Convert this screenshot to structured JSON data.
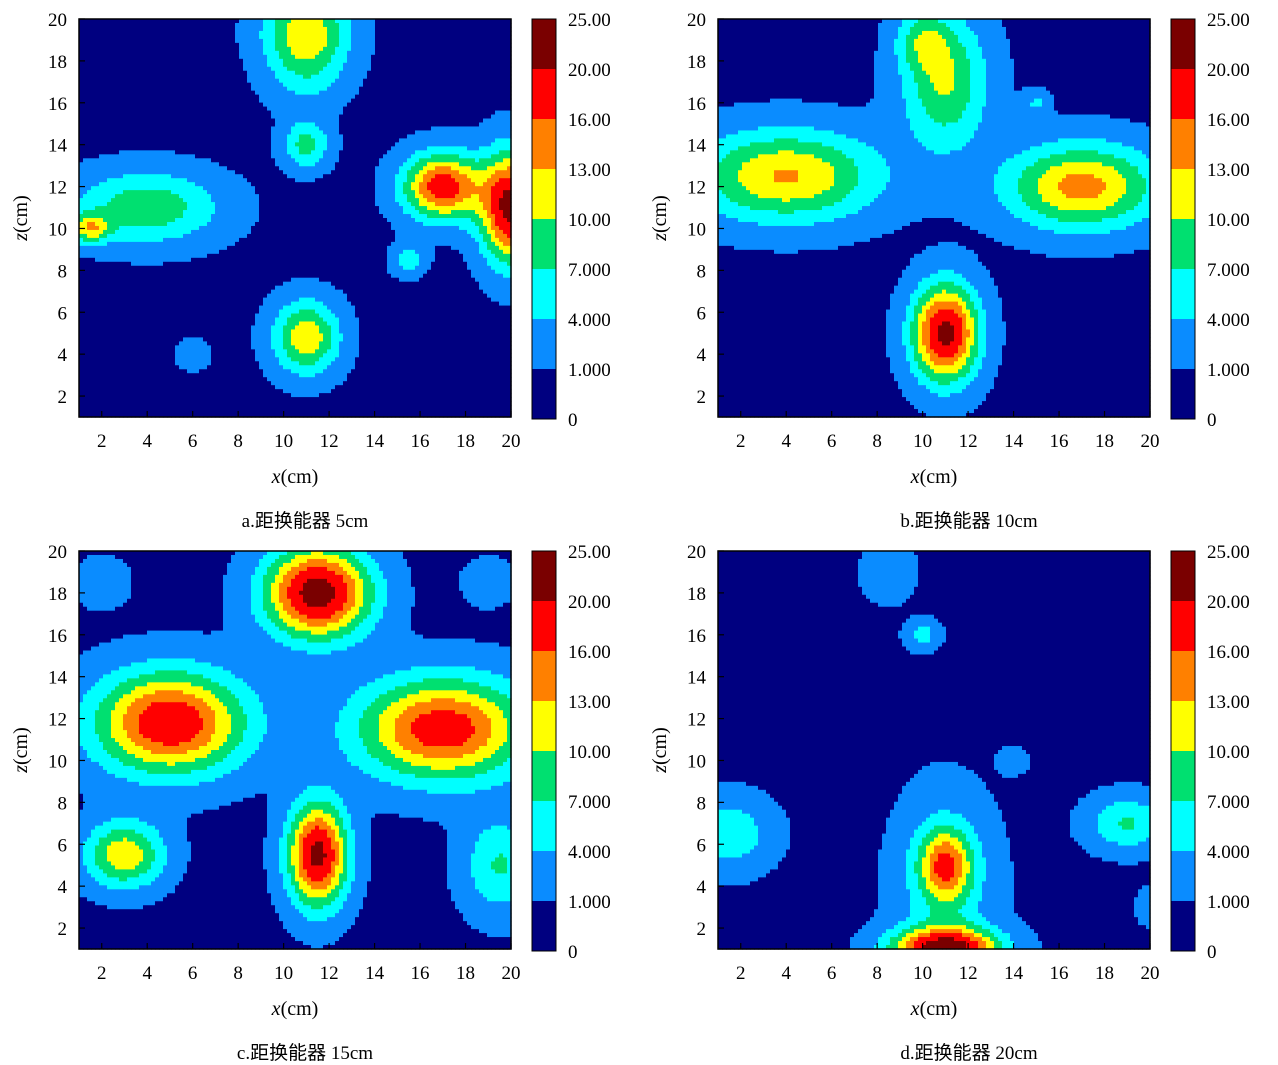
{
  "colorbar": {
    "labels": [
      "25.00",
      "20.00",
      "16.00",
      "13.00",
      "10.00",
      "7.000",
      "4.000",
      "1.000",
      "0"
    ],
    "colors": [
      "#7a0000",
      "#ff0000",
      "#ff8000",
      "#ffff00",
      "#00e070",
      "#00ffff",
      "#0a8cff",
      "#000080"
    ]
  },
  "chart_data": [
    {
      "type": "heatmap",
      "caption": "a.距换能器 5cm",
      "xlabel_var": "x",
      "xlabel_unit": "(cm)",
      "ylabel_var": "z",
      "ylabel_unit": "(cm)",
      "xlim": [
        1,
        20
      ],
      "ylim": [
        1,
        20
      ],
      "xticks": [
        2,
        4,
        6,
        8,
        10,
        12,
        14,
        16,
        18,
        20
      ],
      "yticks": [
        2,
        4,
        6,
        8,
        10,
        12,
        14,
        16,
        18,
        20
      ],
      "peaks": [
        {
          "x": 11,
          "z": 19.5,
          "v": 11,
          "sx": 1.3,
          "sz": 1.2
        },
        {
          "x": 11,
          "z": 17.5,
          "v": 5,
          "sx": 1.2,
          "sz": 1.2
        },
        {
          "x": 11,
          "z": 14,
          "v": 8,
          "sx": 0.7,
          "sz": 0.8
        },
        {
          "x": 4,
          "z": 11,
          "v": 9,
          "sx": 2.2,
          "sz": 1.2
        },
        {
          "x": 1.5,
          "z": 10,
          "v": 10,
          "sx": 0.6,
          "sz": 0.5
        },
        {
          "x": 17,
          "z": 12,
          "v": 18,
          "sx": 1.2,
          "sz": 1.1
        },
        {
          "x": 20,
          "z": 11,
          "v": 21,
          "sx": 0.9,
          "sz": 1.8
        },
        {
          "x": 11,
          "z": 4.8,
          "v": 12,
          "sx": 1,
          "sz": 1.2
        },
        {
          "x": 6,
          "z": 4,
          "v": 3,
          "sx": 0.5,
          "sz": 0.5
        },
        {
          "x": 15.5,
          "z": 8.5,
          "v": 6,
          "sx": 0.5,
          "sz": 0.5
        }
      ]
    },
    {
      "type": "heatmap",
      "caption": "b.距换能器 10cm",
      "xlabel_var": "x",
      "xlabel_unit": "(cm)",
      "ylabel_var": "z",
      "ylabel_unit": "(cm)",
      "xlim": [
        1,
        20
      ],
      "ylim": [
        1,
        20
      ],
      "xticks": [
        2,
        4,
        6,
        8,
        10,
        12,
        14,
        16,
        18,
        20
      ],
      "yticks": [
        2,
        4,
        6,
        8,
        10,
        12,
        14,
        16,
        18,
        20
      ],
      "peaks": [
        {
          "x": 4,
          "z": 12.5,
          "v": 13,
          "sx": 2.8,
          "sz": 1.5
        },
        {
          "x": 17,
          "z": 12,
          "v": 14,
          "sx": 2.3,
          "sz": 1.4
        },
        {
          "x": 11,
          "z": 5,
          "v": 21,
          "sx": 1,
          "sz": 1.6
        },
        {
          "x": 11,
          "z": 17,
          "v": 10,
          "sx": 1.3,
          "sz": 2.2
        },
        {
          "x": 10,
          "z": 19,
          "v": 6,
          "sx": 0.8,
          "sz": 1
        },
        {
          "x": 15,
          "z": 16,
          "v": 4,
          "sx": 0.4,
          "sz": 0.4
        }
      ]
    },
    {
      "type": "heatmap",
      "caption": "c.距换能器 15cm",
      "xlabel_var": "x",
      "xlabel_unit": "(cm)",
      "ylabel_var": "z",
      "ylabel_unit": "(cm)",
      "xlim": [
        1,
        20
      ],
      "ylim": [
        1,
        20
      ],
      "xticks": [
        2,
        4,
        6,
        8,
        10,
        12,
        14,
        16,
        18,
        20
      ],
      "yticks": [
        2,
        4,
        6,
        8,
        10,
        12,
        14,
        16,
        18,
        20
      ],
      "peaks": [
        {
          "x": 5,
          "z": 11.8,
          "v": 19,
          "sx": 2.3,
          "sz": 1.7
        },
        {
          "x": 17,
          "z": 11.5,
          "v": 18,
          "sx": 2.6,
          "sz": 1.7
        },
        {
          "x": 11.5,
          "z": 18,
          "v": 22,
          "sx": 1.6,
          "sz": 1.5
        },
        {
          "x": 11.5,
          "z": 5.5,
          "v": 21,
          "sx": 0.9,
          "sz": 1.7
        },
        {
          "x": 3,
          "z": 5.5,
          "v": 12,
          "sx": 1.2,
          "sz": 1.1
        },
        {
          "x": 19.5,
          "z": 5,
          "v": 7,
          "sx": 1.1,
          "sz": 1.6
        },
        {
          "x": 2,
          "z": 18.5,
          "v": 3,
          "sx": 0.8,
          "sz": 0.8
        },
        {
          "x": 19,
          "z": 18.5,
          "v": 2.5,
          "sx": 0.8,
          "sz": 0.8
        }
      ]
    },
    {
      "type": "heatmap",
      "caption": "d.距换能器 20cm",
      "xlabel_var": "x",
      "xlabel_unit": "(cm)",
      "ylabel_var": "z",
      "ylabel_unit": "(cm)",
      "xlim": [
        1,
        20
      ],
      "ylim": [
        1,
        20
      ],
      "xticks": [
        2,
        4,
        6,
        8,
        10,
        12,
        14,
        16,
        18,
        20
      ],
      "yticks": [
        2,
        4,
        6,
        8,
        10,
        12,
        14,
        16,
        18,
        20
      ],
      "peaks": [
        {
          "x": 11,
          "z": 5,
          "v": 13,
          "sx": 0.8,
          "sz": 1.2
        },
        {
          "x": 11,
          "z": 1,
          "v": 21,
          "sx": 1.6,
          "sz": 0.7
        },
        {
          "x": 11,
          "z": 4,
          "v": 5,
          "sx": 1.5,
          "sz": 3
        },
        {
          "x": 1.5,
          "z": 6.5,
          "v": 6,
          "sx": 1.3,
          "sz": 1.2
        },
        {
          "x": 19,
          "z": 7,
          "v": 7,
          "sx": 1.2,
          "sz": 0.9
        },
        {
          "x": 8.5,
          "z": 19,
          "v": 3,
          "sx": 0.8,
          "sz": 1
        },
        {
          "x": 10,
          "z": 16,
          "v": 5,
          "sx": 0.5,
          "sz": 0.5
        },
        {
          "x": 14,
          "z": 10,
          "v": 2,
          "sx": 0.5,
          "sz": 0.5
        },
        {
          "x": 20,
          "z": 3,
          "v": 2,
          "sx": 0.5,
          "sz": 0.7
        }
      ]
    }
  ]
}
